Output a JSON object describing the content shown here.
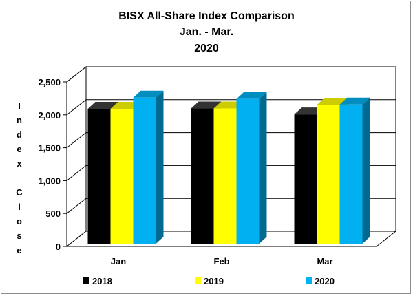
{
  "chart_data": {
    "type": "bar",
    "title": [
      "BISX All-Share Index Comparison",
      "Jan. - Mar.",
      "2020"
    ],
    "ylabel": "Index Close",
    "xlabel": "",
    "categories": [
      "Jan",
      "Feb",
      "Mar"
    ],
    "series": [
      {
        "name": "2018",
        "values": [
          2050,
          2055,
          1965
        ],
        "color": "#000000"
      },
      {
        "name": "2019",
        "values": [
          2050,
          2055,
          2110
        ],
        "color": "#ffff00"
      },
      {
        "name": "2020",
        "values": [
          2220,
          2200,
          2115
        ],
        "color": "#00b0f0"
      }
    ],
    "ylim": [
      0,
      2500
    ],
    "yticks": [
      0,
      500,
      1000,
      1500,
      2000,
      2500
    ],
    "ytick_labels": [
      "0",
      "500",
      "1,000",
      "1,500",
      "2,000",
      "2,500"
    ],
    "grid": true,
    "legend_position": "bottom"
  }
}
